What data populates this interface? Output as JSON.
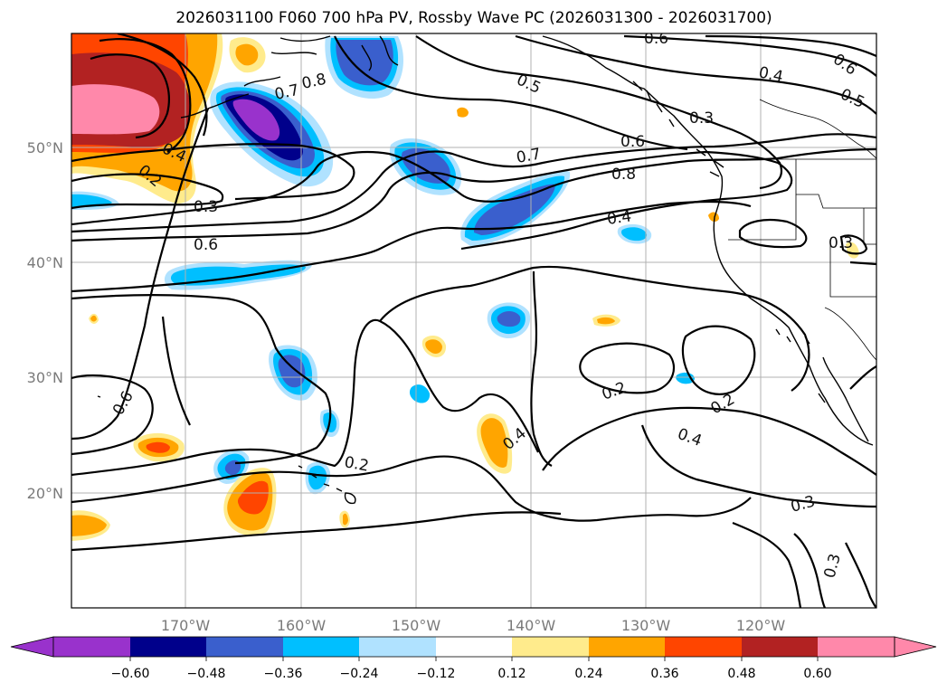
{
  "title": "2026031100 F060 700 hPa PV, Rossby Wave PC (2026031300 - 2026031700)",
  "lon_ticks": [
    "170°W",
    "160°W",
    "150°W",
    "140°W",
    "130°W",
    "120°W"
  ],
  "lat_ticks": [
    "50°N",
    "40°N",
    "30°N",
    "20°N"
  ],
  "colorbar": {
    "ticks": [
      "−0.60",
      "−0.48",
      "−0.36",
      "−0.24",
      "−0.12",
      "0.12",
      "0.24",
      "0.36",
      "0.48",
      "0.60"
    ],
    "colors": [
      "#9932cc",
      "#00008b",
      "#3a5fcd",
      "#00bfff",
      "#b0e2ff",
      "#ffffff",
      "#ffeb8c",
      "#ffa500",
      "#ff4500",
      "#b22222",
      "#ff88aa"
    ]
  },
  "contour_labels": {
    "c1": "0.6",
    "c2": "0.4",
    "c3": "0.6",
    "c4": "0.5",
    "c5": "0.8",
    "c6": "0.7",
    "c7": "0.5",
    "c8": "0.4",
    "c9": "0.2",
    "c10": "0.3",
    "c11": "0.6",
    "c12": "0.7",
    "c13": "0.6",
    "c14": "0.3",
    "c15": "0.8",
    "c16": "0.4",
    "c17": "0.3",
    "c18": "0.6",
    "c19": "0.2",
    "c20": "0.4",
    "c21": "0.2",
    "c22": "0.2",
    "c23": "0.4",
    "c24": "0.3",
    "c25": "0.3"
  },
  "map": {
    "projection": "cylindrical",
    "lon_range": [
      -180,
      -110
    ],
    "lat_range": [
      10,
      60
    ],
    "colors": {
      "contour": "#000000",
      "grid": "#b0b0b0",
      "coast": "#000000"
    }
  }
}
